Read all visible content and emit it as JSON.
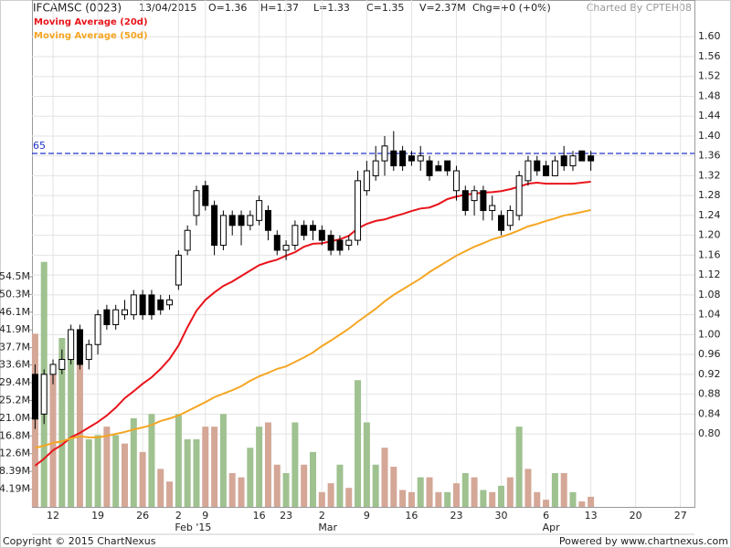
{
  "header": {
    "symbol": "IFCAMSC (0023)",
    "date": "13/04/2015",
    "open": "O=1.36",
    "high": "H=1.37",
    "low": "L=1.33",
    "close": "C=1.35",
    "volume": "V=2.37M",
    "change": "Chg=+0 (+0%)",
    "charted_by": "Charted By CPTEH08"
  },
  "chart_data": {
    "type": "candlestick",
    "categories": [
      null,
      null,
      "12",
      null,
      null,
      null,
      null,
      "19",
      null,
      null,
      null,
      null,
      "26",
      null,
      null,
      null,
      "2",
      null,
      null,
      "9",
      null,
      null,
      null,
      null,
      null,
      "16",
      null,
      null,
      "23",
      null,
      null,
      null,
      "2",
      null,
      null,
      null,
      null,
      "9",
      null,
      null,
      null,
      null,
      "16",
      null,
      null,
      null,
      null,
      "23",
      null,
      null,
      null,
      null,
      "30",
      null,
      null,
      null,
      null,
      "6",
      null,
      null,
      null,
      null,
      "13",
      null,
      null,
      null,
      null,
      "20",
      null,
      null,
      null,
      null,
      "27",
      null
    ],
    "category_sublabels": [
      null,
      null,
      null,
      null,
      null,
      null,
      null,
      null,
      null,
      null,
      null,
      null,
      null,
      null,
      null,
      null,
      "Feb '15",
      null,
      null,
      null,
      null,
      null,
      null,
      null,
      null,
      null,
      null,
      null,
      null,
      null,
      null,
      null,
      "Mar",
      null,
      null,
      null,
      null,
      null,
      null,
      null,
      null,
      null,
      null,
      null,
      null,
      null,
      null,
      null,
      null,
      null,
      null,
      null,
      null,
      null,
      null,
      null,
      null,
      "Apr",
      null,
      null,
      null,
      null,
      null,
      null,
      null,
      null,
      null,
      null,
      null,
      null,
      null,
      null,
      null,
      null
    ],
    "open": [
      0.92,
      0.84,
      0.92,
      0.93,
      0.95,
      1.01,
      0.95,
      0.98,
      1.05,
      1.02,
      1.04,
      1.04,
      1.08,
      1.08,
      1.07,
      1.06,
      1.1,
      1.17,
      1.24,
      1.3,
      1.26,
      1.18,
      1.24,
      1.24,
      1.22,
      1.23,
      1.25,
      1.2,
      1.17,
      1.18,
      1.22,
      1.22,
      1.21,
      1.2,
      1.19,
      1.18,
      1.19,
      1.29,
      1.32,
      1.35,
      1.37,
      1.37,
      1.36,
      1.35,
      1.35,
      1.34,
      1.35,
      1.29,
      1.29,
      1.27,
      1.29,
      1.25,
      1.24,
      1.22,
      1.24,
      1.31,
      1.35,
      1.34,
      1.32,
      1.36,
      1.34,
      1.37,
      1.36,
      null,
      null,
      null,
      null,
      null,
      null,
      null,
      null,
      null,
      null,
      null
    ],
    "high": [
      0.94,
      0.93,
      0.95,
      0.97,
      1.02,
      1.02,
      0.99,
      1.05,
      1.06,
      1.06,
      1.07,
      1.09,
      1.09,
      1.09,
      1.08,
      1.08,
      1.17,
      1.22,
      1.3,
      1.31,
      1.27,
      1.25,
      1.25,
      1.25,
      1.25,
      1.28,
      1.26,
      1.21,
      1.19,
      1.23,
      1.23,
      1.23,
      1.22,
      1.21,
      1.2,
      1.2,
      1.33,
      1.35,
      1.38,
      1.4,
      1.41,
      1.38,
      1.37,
      1.38,
      1.36,
      1.35,
      1.35,
      1.34,
      1.3,
      1.3,
      1.3,
      1.28,
      1.25,
      1.26,
      1.33,
      1.36,
      1.36,
      1.35,
      1.36,
      1.38,
      1.37,
      1.37,
      1.37,
      null,
      null,
      null,
      null,
      null,
      null,
      null,
      null,
      null,
      null,
      null
    ],
    "low": [
      0.81,
      0.82,
      0.9,
      0.92,
      0.94,
      0.93,
      0.93,
      0.96,
      1.01,
      1.01,
      1.03,
      1.03,
      1.03,
      1.03,
      1.04,
      1.05,
      1.09,
      1.16,
      1.22,
      1.25,
      1.16,
      1.17,
      1.2,
      1.18,
      1.21,
      1.22,
      1.19,
      1.16,
      1.15,
      1.17,
      1.19,
      1.19,
      1.18,
      1.16,
      1.16,
      1.17,
      1.18,
      1.28,
      1.31,
      1.32,
      1.33,
      1.33,
      1.34,
      1.33,
      1.31,
      1.33,
      1.32,
      1.27,
      1.24,
      1.24,
      1.23,
      1.23,
      1.2,
      1.21,
      1.23,
      1.3,
      1.32,
      1.32,
      1.32,
      1.33,
      1.33,
      1.35,
      1.33,
      null,
      null,
      null,
      null,
      null,
      null,
      null,
      null,
      null,
      null,
      null
    ],
    "close": [
      0.83,
      0.92,
      0.94,
      0.95,
      1.01,
      0.94,
      0.98,
      1.04,
      1.02,
      1.05,
      1.05,
      1.08,
      1.04,
      1.04,
      1.05,
      1.07,
      1.16,
      1.21,
      1.29,
      1.26,
      1.18,
      1.24,
      1.22,
      1.22,
      1.24,
      1.27,
      1.21,
      1.17,
      1.18,
      1.22,
      1.2,
      1.21,
      1.19,
      1.17,
      1.17,
      1.19,
      1.31,
      1.33,
      1.35,
      1.38,
      1.34,
      1.34,
      1.35,
      1.36,
      1.32,
      1.33,
      1.33,
      1.33,
      1.25,
      1.29,
      1.25,
      1.26,
      1.21,
      1.25,
      1.32,
      1.35,
      1.33,
      1.32,
      1.35,
      1.34,
      1.36,
      1.35,
      1.35,
      null,
      null,
      null,
      null,
      null,
      null,
      null,
      null,
      null,
      null,
      null
    ],
    "up_color": "#ffffff",
    "down_color": "#000000",
    "moving_averages": [
      {
        "name": "Moving Average (20d)",
        "color": "#e8141b",
        "values": [
          0.736,
          0.75,
          0.767,
          0.778,
          0.793,
          0.802,
          0.813,
          0.824,
          0.837,
          0.853,
          0.872,
          0.886,
          0.901,
          0.914,
          0.931,
          0.951,
          0.978,
          1.015,
          1.048,
          1.07,
          1.085,
          1.098,
          1.107,
          1.118,
          1.129,
          1.14,
          1.146,
          1.151,
          1.159,
          1.166,
          1.177,
          1.183,
          1.184,
          1.188,
          1.192,
          1.199,
          1.214,
          1.223,
          1.229,
          1.232,
          1.238,
          1.243,
          1.249,
          1.254,
          1.256,
          1.263,
          1.273,
          1.278,
          1.282,
          1.284,
          1.286,
          1.287,
          1.289,
          1.293,
          1.298,
          1.304,
          1.306,
          1.304,
          1.304,
          1.304,
          1.304,
          1.306,
          1.308,
          null,
          null,
          null,
          null,
          null,
          null,
          null,
          null,
          null,
          null,
          null
        ]
      },
      {
        "name": "Moving Average (50d)",
        "color": "#f5a623",
        "values": [
          0.772,
          0.776,
          0.782,
          0.785,
          0.791,
          0.795,
          0.793,
          0.793,
          0.796,
          0.8,
          0.804,
          0.809,
          0.813,
          0.818,
          0.826,
          0.831,
          0.837,
          0.846,
          0.855,
          0.864,
          0.874,
          0.881,
          0.888,
          0.896,
          0.907,
          0.916,
          0.923,
          0.931,
          0.936,
          0.945,
          0.954,
          0.964,
          0.977,
          0.988,
          1.0,
          1.012,
          1.026,
          1.039,
          1.052,
          1.067,
          1.08,
          1.091,
          1.102,
          1.113,
          1.126,
          1.137,
          1.148,
          1.159,
          1.168,
          1.177,
          1.184,
          1.192,
          1.197,
          1.203,
          1.21,
          1.218,
          1.223,
          1.229,
          1.234,
          1.24,
          1.243,
          1.247,
          1.251,
          null,
          null,
          null,
          null,
          null,
          null,
          null,
          null,
          null,
          null,
          null
        ]
      }
    ],
    "volume": {
      "values": [
        41,
        58,
        33,
        40,
        41,
        42,
        16,
        17,
        19,
        17,
        15,
        21,
        13,
        22,
        9,
        6,
        22,
        16,
        16,
        19,
        19,
        22,
        8,
        7,
        14,
        19,
        20,
        10,
        8,
        20,
        10,
        13,
        3.5,
        5.6,
        10,
        4.5,
        30,
        20,
        10,
        14,
        9.5,
        4,
        3.5,
        7,
        7,
        3.5,
        3.5,
        5.6,
        8,
        7,
        4,
        3.5,
        5,
        7,
        19,
        9,
        3.5,
        1.7,
        8,
        8,
        3.5,
        1.3,
        2.4,
        null,
        null,
        null,
        null,
        null,
        null,
        null,
        null,
        null,
        null,
        null
      ],
      "colors": [
        "#d4a797",
        "#9fc290",
        "#d4a797",
        "#9fc290",
        "#9fc290",
        "#d4a797",
        "#9fc290",
        "#9fc290",
        "#d4a797",
        "#9fc290",
        "#d4a797",
        "#9fc290",
        "#d4a797",
        "#9fc290",
        "#d4a797",
        "#d4a797",
        "#9fc290",
        "#9fc290",
        "#9fc290",
        "#d4a797",
        "#d4a797",
        "#9fc290",
        "#d4a797",
        "#d4a797",
        "#9fc290",
        "#9fc290",
        "#d4a797",
        "#d4a797",
        "#9fc290",
        "#9fc290",
        "#d4a797",
        "#9fc290",
        "#d4a797",
        "#d4a797",
        "#9fc290",
        "#d4a797",
        "#9fc290",
        "#9fc290",
        "#9fc290",
        "#d4a797",
        "#d4a797",
        "#d4a797",
        "#d4a797",
        "#9fc290",
        "#d4a797",
        "#d4a797",
        "#9fc290",
        "#d4a797",
        "#9fc290",
        "#d4a797",
        "#9fc290",
        "#d4a797",
        "#9fc290",
        "#d4a797",
        "#9fc290",
        "#d4a797",
        "#d4a797",
        "#d4a797",
        "#9fc290",
        "#d4a797",
        "#9fc290",
        "#d4a797",
        "#d4a797",
        null,
        null,
        null,
        null,
        null,
        null,
        null,
        null,
        null,
        null,
        null
      ],
      "ylim": [
        0,
        120
      ],
      "yticks": [
        {
          "value": 4.19,
          "label": "4.19M"
        },
        {
          "value": 8.39,
          "label": "8.39M"
        },
        {
          "value": 12.6,
          "label": "12.6M"
        },
        {
          "value": 16.8,
          "label": "16.8M"
        },
        {
          "value": 21.0,
          "label": "21.0M"
        },
        {
          "value": 25.2,
          "label": "25.2M"
        },
        {
          "value": 29.4,
          "label": "29.4M"
        },
        {
          "value": 33.6,
          "label": "33.6M"
        },
        {
          "value": 37.7,
          "label": "37.7M"
        },
        {
          "value": 41.9,
          "label": "41.9M"
        },
        {
          "value": 46.1,
          "label": "46.1M"
        },
        {
          "value": 50.3,
          "label": "50.3M"
        },
        {
          "value": 54.5,
          "label": "54.5M"
        }
      ]
    },
    "ylim": [
      0.653,
      1.674
    ],
    "yticks": [
      {
        "value": 0.8,
        "label": "0.80"
      },
      {
        "value": 0.84,
        "label": "0.84"
      },
      {
        "value": 0.88,
        "label": "0.88"
      },
      {
        "value": 0.92,
        "label": "0.92"
      },
      {
        "value": 0.96,
        "label": "0.96"
      },
      {
        "value": 1.0,
        "label": "1.00"
      },
      {
        "value": 1.04,
        "label": "1.04"
      },
      {
        "value": 1.08,
        "label": "1.08"
      },
      {
        "value": 1.12,
        "label": "1.12"
      },
      {
        "value": 1.16,
        "label": "1.16"
      },
      {
        "value": 1.2,
        "label": "1.20"
      },
      {
        "value": 1.24,
        "label": "1.24"
      },
      {
        "value": 1.28,
        "label": "1.28"
      },
      {
        "value": 1.32,
        "label": "1.32"
      },
      {
        "value": 1.36,
        "label": "1.36"
      },
      {
        "value": 1.4,
        "label": "1.40"
      },
      {
        "value": 1.44,
        "label": "1.44"
      },
      {
        "value": 1.48,
        "label": "1.48"
      },
      {
        "value": 1.52,
        "label": "1.52"
      },
      {
        "value": 1.56,
        "label": "1.56"
      },
      {
        "value": 1.6,
        "label": "1.60"
      }
    ],
    "reference_line": {
      "value": 1.365,
      "label": "65",
      "color": "#2233cc"
    },
    "grid": true
  },
  "footer": {
    "left": "Copyright © 2015 ChartNexus",
    "right": "Powered by www.chartnexus.com"
  }
}
